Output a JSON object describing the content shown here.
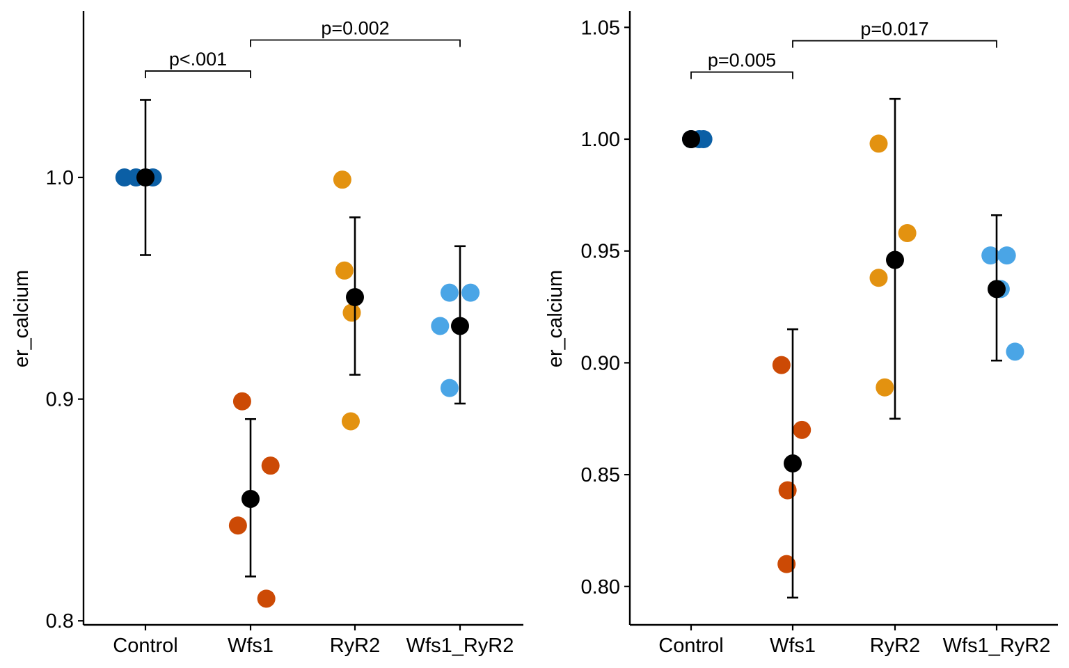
{
  "colors": {
    "Control": "#0b5fa5",
    "Wfs1": "#cc4a05",
    "RyR2": "#e39210",
    "Wfs1_RyR2": "#4aa5e6",
    "mean": "#000000"
  },
  "chart_data": [
    {
      "type": "scatter",
      "title": "",
      "xlabel": "",
      "ylabel": "er_calcium",
      "ylim": [
        0.798,
        1.068
      ],
      "yticks": [
        "1.0",
        "0.9",
        "0.8"
      ],
      "ytick_values": [
        1.0,
        0.9,
        0.8
      ],
      "categories": [
        "Control",
        "Wfs1",
        "RyR2",
        "Wfs1_RyR2"
      ],
      "grid": false,
      "legend": "none",
      "points": [
        {
          "category": "Control",
          "y": 1.0,
          "jitter": -0.2
        },
        {
          "category": "Control",
          "y": 1.0,
          "jitter": -0.09
        },
        {
          "category": "Control",
          "y": 1.0,
          "jitter": 0.07
        },
        {
          "category": "Wfs1",
          "y": 0.899,
          "jitter": -0.08
        },
        {
          "category": "Wfs1",
          "y": 0.87,
          "jitter": 0.19
        },
        {
          "category": "Wfs1",
          "y": 0.843,
          "jitter": -0.12
        },
        {
          "category": "Wfs1",
          "y": 0.81,
          "jitter": 0.15
        },
        {
          "category": "RyR2",
          "y": 0.999,
          "jitter": -0.12
        },
        {
          "category": "RyR2",
          "y": 0.958,
          "jitter": -0.1
        },
        {
          "category": "RyR2",
          "y": 0.939,
          "jitter": -0.03
        },
        {
          "category": "RyR2",
          "y": 0.89,
          "jitter": -0.04
        },
        {
          "category": "Wfs1_RyR2",
          "y": 0.948,
          "jitter": -0.1
        },
        {
          "category": "Wfs1_RyR2",
          "y": 0.948,
          "jitter": 0.1
        },
        {
          "category": "Wfs1_RyR2",
          "y": 0.933,
          "jitter": -0.19
        },
        {
          "category": "Wfs1_RyR2",
          "y": 0.905,
          "jitter": -0.1
        }
      ],
      "summary": [
        {
          "category": "Control",
          "mean": 1.0,
          "lower": 0.965,
          "upper": 1.035
        },
        {
          "category": "Wfs1",
          "mean": 0.855,
          "lower": 0.82,
          "upper": 0.891
        },
        {
          "category": "RyR2",
          "mean": 0.946,
          "lower": 0.911,
          "upper": 0.982
        },
        {
          "category": "Wfs1_RyR2",
          "mean": 0.933,
          "lower": 0.898,
          "upper": 0.969
        }
      ],
      "comparisons": [
        {
          "from": "Control",
          "to": "Wfs1",
          "label": "p<.001",
          "y": 1.048
        },
        {
          "from": "Wfs1",
          "to": "Wfs1_RyR2",
          "label": "p=0.002",
          "y": 1.062
        }
      ]
    },
    {
      "type": "scatter",
      "title": "",
      "xlabel": "",
      "ylabel": "er_calcium",
      "ylim": [
        0.782,
        1.057
      ],
      "yticks": [
        "1.05",
        "1.00",
        "0.95",
        "0.90",
        "0.85",
        "0.80"
      ],
      "ytick_values": [
        1.05,
        1.0,
        0.95,
        0.9,
        0.85,
        0.8
      ],
      "categories": [
        "Control",
        "Wfs1",
        "RyR2",
        "Wfs1_RyR2"
      ],
      "grid": false,
      "legend": "none",
      "points": [
        {
          "category": "Control",
          "y": 1.0,
          "jitter": 0.0
        },
        {
          "category": "Control",
          "y": 1.0,
          "jitter": 0.08
        },
        {
          "category": "Control",
          "y": 1.0,
          "jitter": 0.12
        },
        {
          "category": "Wfs1",
          "y": 0.899,
          "jitter": -0.11
        },
        {
          "category": "Wfs1",
          "y": 0.87,
          "jitter": 0.09
        },
        {
          "category": "Wfs1",
          "y": 0.843,
          "jitter": -0.05
        },
        {
          "category": "Wfs1",
          "y": 0.81,
          "jitter": -0.06
        },
        {
          "category": "RyR2",
          "y": 0.998,
          "jitter": -0.16
        },
        {
          "category": "RyR2",
          "y": 0.958,
          "jitter": 0.12
        },
        {
          "category": "RyR2",
          "y": 0.938,
          "jitter": -0.16
        },
        {
          "category": "RyR2",
          "y": 0.889,
          "jitter": -0.1
        },
        {
          "category": "Wfs1_RyR2",
          "y": 0.948,
          "jitter": -0.06
        },
        {
          "category": "Wfs1_RyR2",
          "y": 0.948,
          "jitter": 0.1
        },
        {
          "category": "Wfs1_RyR2",
          "y": 0.933,
          "jitter": 0.04
        },
        {
          "category": "Wfs1_RyR2",
          "y": 0.905,
          "jitter": 0.18
        }
      ],
      "summary": [
        {
          "category": "Control",
          "mean": 1.0,
          "lower": null,
          "upper": null
        },
        {
          "category": "Wfs1",
          "mean": 0.855,
          "lower": 0.795,
          "upper": 0.915
        },
        {
          "category": "RyR2",
          "mean": 0.946,
          "lower": 0.875,
          "upper": 1.018
        },
        {
          "category": "Wfs1_RyR2",
          "mean": 0.933,
          "lower": 0.901,
          "upper": 0.966
        }
      ],
      "comparisons": [
        {
          "from": "Control",
          "to": "Wfs1",
          "label": "p=0.005",
          "y": 1.03
        },
        {
          "from": "Wfs1",
          "to": "Wfs1_RyR2",
          "label": "p=0.017",
          "y": 1.044
        }
      ]
    }
  ]
}
